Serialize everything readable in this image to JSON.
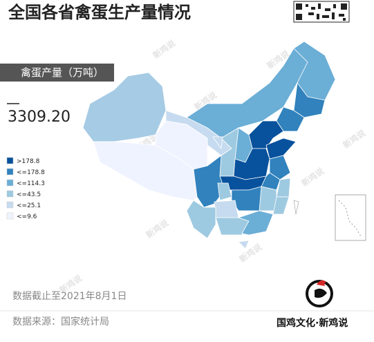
{
  "title": "全国各省禽蛋生产量情况",
  "indicator": "禽蛋产量（万吨）",
  "total": "3309.20",
  "legend": [
    {
      "label": ">178.8",
      "color": "#08519c"
    },
    {
      "label": "<=178.8",
      "color": "#3182bd"
    },
    {
      "label": "<=114.3",
      "color": "#6baed6"
    },
    {
      "label": "<=43.5",
      "color": "#9ecae1"
    },
    {
      "label": "<=25.1",
      "color": "#c6dbef"
    },
    {
      "label": "<=9.6",
      "color": "#eff3ff"
    }
  ],
  "watermark": "新鸡说",
  "footnote_date": "数据截止至2021年8月1日",
  "footnote_source": "数据来源：国家统计局",
  "brand": "国鸡文化·新鸡说"
}
